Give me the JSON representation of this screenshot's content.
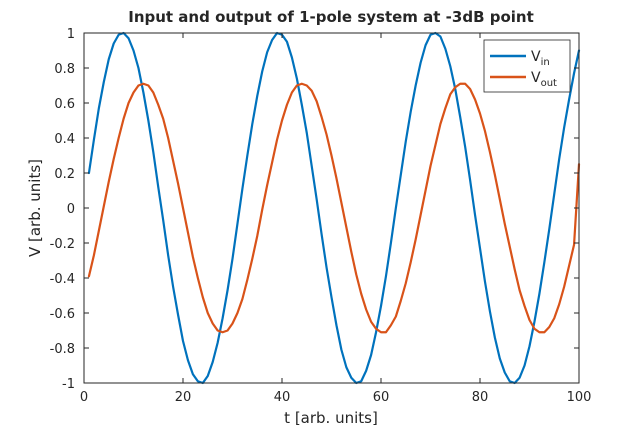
{
  "chart_data": {
    "type": "line",
    "title": "Input and output of 1-pole system at -3dB point",
    "xlabel": "t [arb. units]",
    "ylabel": "V [arb. units]",
    "xlim": [
      0,
      100
    ],
    "ylim": [
      -1,
      1
    ],
    "xticks": [
      "0",
      "20",
      "40",
      "60",
      "80",
      "100"
    ],
    "yticks": [
      "-1",
      "-0.8",
      "-0.6",
      "-0.4",
      "-0.2",
      "0",
      "0.2",
      "0.4",
      "0.6",
      "0.8",
      "1"
    ],
    "grid": false,
    "legend_position": "top-right",
    "series": [
      {
        "name": "V",
        "name_sub": "in",
        "color": "#0072BD",
        "x": [
          1,
          2,
          3,
          4,
          5,
          6,
          7,
          8,
          9,
          10,
          11,
          12,
          13,
          14,
          15,
          16,
          17,
          18,
          19,
          20,
          21,
          22,
          23,
          24,
          25,
          26,
          27,
          28,
          29,
          30,
          31,
          32,
          33,
          34,
          35,
          36,
          37,
          38,
          39,
          40,
          41,
          42,
          43,
          44,
          45,
          46,
          47,
          48,
          49,
          50,
          51,
          52,
          53,
          54,
          55,
          56,
          57,
          58,
          59,
          60,
          61,
          62,
          63,
          64,
          65,
          66,
          67,
          68,
          69,
          70,
          71,
          72,
          73,
          74,
          75,
          76,
          77,
          78,
          79,
          80,
          81,
          82,
          83,
          84,
          85,
          86,
          87,
          88,
          89,
          90,
          91,
          92,
          93,
          94,
          95,
          96,
          97,
          98,
          99,
          100
        ],
        "values": [
          0.2,
          0.39,
          0.57,
          0.72,
          0.85,
          0.94,
          0.99,
          1.0,
          0.97,
          0.9,
          0.8,
          0.66,
          0.5,
          0.32,
          0.12,
          -0.07,
          -0.27,
          -0.45,
          -0.61,
          -0.76,
          -0.87,
          -0.95,
          -0.99,
          -1.0,
          -0.96,
          -0.88,
          -0.77,
          -0.63,
          -0.47,
          -0.29,
          -0.09,
          0.11,
          0.3,
          0.48,
          0.64,
          0.78,
          0.89,
          0.96,
          1.0,
          0.99,
          0.95,
          0.86,
          0.74,
          0.59,
          0.43,
          0.24,
          0.05,
          -0.15,
          -0.34,
          -0.51,
          -0.67,
          -0.81,
          -0.91,
          -0.97,
          -1.0,
          -0.99,
          -0.93,
          -0.84,
          -0.71,
          -0.56,
          -0.39,
          -0.2,
          0.0,
          0.19,
          0.38,
          0.55,
          0.7,
          0.83,
          0.93,
          0.99,
          1.0,
          0.98,
          0.91,
          0.81,
          0.68,
          0.52,
          0.35,
          0.16,
          -0.04,
          -0.23,
          -0.42,
          -0.59,
          -0.74,
          -0.86,
          -0.94,
          -0.99,
          -1.0,
          -0.97,
          -0.9,
          -0.79,
          -0.65,
          -0.49,
          -0.31,
          -0.12,
          0.08,
          0.28,
          0.46,
          0.62,
          0.77,
          0.9
        ]
      },
      {
        "name": "V",
        "name_sub": "out",
        "color": "#D95319",
        "x": [
          1,
          2,
          3,
          4,
          5,
          6,
          7,
          8,
          9,
          10,
          11,
          12,
          13,
          14,
          15,
          16,
          17,
          18,
          19,
          20,
          21,
          22,
          23,
          24,
          25,
          26,
          27,
          28,
          29,
          30,
          31,
          32,
          33,
          34,
          35,
          36,
          37,
          38,
          39,
          40,
          41,
          42,
          43,
          44,
          45,
          46,
          47,
          48,
          49,
          50,
          51,
          52,
          53,
          54,
          55,
          56,
          57,
          58,
          59,
          60,
          61,
          62,
          63,
          64,
          65,
          66,
          67,
          68,
          69,
          70,
          71,
          72,
          73,
          74,
          75,
          76,
          77,
          78,
          79,
          80,
          81,
          82,
          83,
          84,
          85,
          86,
          87,
          88,
          89,
          90,
          91,
          92,
          93,
          94,
          95,
          96,
          97,
          98,
          99,
          100
        ],
        "values": [
          -0.39,
          -0.27,
          -0.13,
          0.01,
          0.15,
          0.28,
          0.4,
          0.51,
          0.6,
          0.66,
          0.7,
          0.71,
          0.7,
          0.66,
          0.59,
          0.51,
          0.4,
          0.27,
          0.14,
          0.0,
          -0.14,
          -0.28,
          -0.4,
          -0.51,
          -0.6,
          -0.66,
          -0.7,
          -0.71,
          -0.7,
          -0.66,
          -0.6,
          -0.52,
          -0.41,
          -0.29,
          -0.16,
          -0.01,
          0.13,
          0.26,
          0.39,
          0.5,
          0.59,
          0.66,
          0.7,
          0.71,
          0.7,
          0.67,
          0.61,
          0.52,
          0.42,
          0.3,
          0.17,
          0.03,
          -0.11,
          -0.25,
          -0.38,
          -0.49,
          -0.58,
          -0.65,
          -0.69,
          -0.71,
          -0.71,
          -0.67,
          -0.62,
          -0.53,
          -0.43,
          -0.31,
          -0.18,
          -0.04,
          0.1,
          0.24,
          0.36,
          0.48,
          0.57,
          0.65,
          0.69,
          0.71,
          0.71,
          0.68,
          0.62,
          0.54,
          0.44,
          0.32,
          0.19,
          0.05,
          -0.09,
          -0.22,
          -0.35,
          -0.47,
          -0.56,
          -0.64,
          -0.69,
          -0.71,
          -0.71,
          -0.68,
          -0.63,
          -0.55,
          -0.45,
          -0.33,
          -0.21,
          0.25
        ]
      }
    ]
  }
}
